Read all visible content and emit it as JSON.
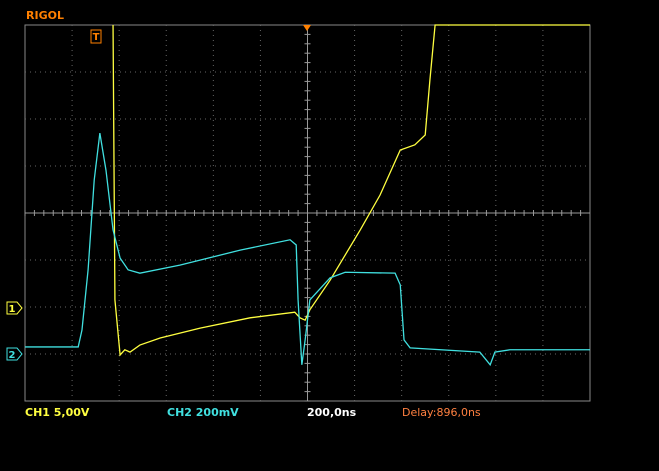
{
  "header": {
    "brand": "RIGOL",
    "trigger_marker": "T"
  },
  "traces": [
    {
      "marker": "1",
      "color": "#ffff40",
      "x": [
        1.87,
        1.91,
        2.02,
        2.12,
        2.23,
        2.44,
        2.87,
        3.72,
        4.78,
        5.73,
        5.84,
        5.95,
        6.05,
        6.48,
        7.12,
        7.54,
        7.97,
        8.28,
        8.5,
        8.6,
        8.71,
        12
      ],
      "y": [
        4,
        -1.85,
        -3.02,
        -2.91,
        -2.96,
        -2.81,
        -2.66,
        -2.45,
        -2.23,
        -2.11,
        -2.23,
        -2.28,
        -2.06,
        -1.43,
        -0.36,
        0.38,
        1.34,
        1.45,
        1.66,
        2.83,
        4,
        4
      ]
    },
    {
      "marker": "2",
      "color": "#40e0e0",
      "x": [
        0,
        1.13,
        1.21,
        1.34,
        1.47,
        1.59,
        1.72,
        1.87,
        2.02,
        2.19,
        2.44,
        3.29,
        4.57,
        5.63,
        5.76,
        5.8,
        5.88,
        5.95,
        6.05,
        6.48,
        6.8,
        7.86,
        7.97,
        8.05,
        8.18,
        9.66,
        9.88,
        9.98,
        10.3,
        12
      ],
      "y": [
        -2.85,
        -2.85,
        -2.49,
        -1.21,
        0.7,
        1.7,
        0.91,
        -0.36,
        -0.96,
        -1.21,
        -1.28,
        -1.11,
        -0.79,
        -0.57,
        -0.68,
        -1.85,
        -3.23,
        -2.7,
        -1.85,
        -1.38,
        -1.26,
        -1.28,
        -1.53,
        -2.7,
        -2.87,
        -2.96,
        -3.23,
        -2.96,
        -2.91,
        -2.91
      ]
    }
  ],
  "status": {
    "ch1": "CH1 5,00V",
    "ch2": "CH2 200mV",
    "timebase": "200,0ns",
    "delay": "Delay:896,0ns"
  }
}
